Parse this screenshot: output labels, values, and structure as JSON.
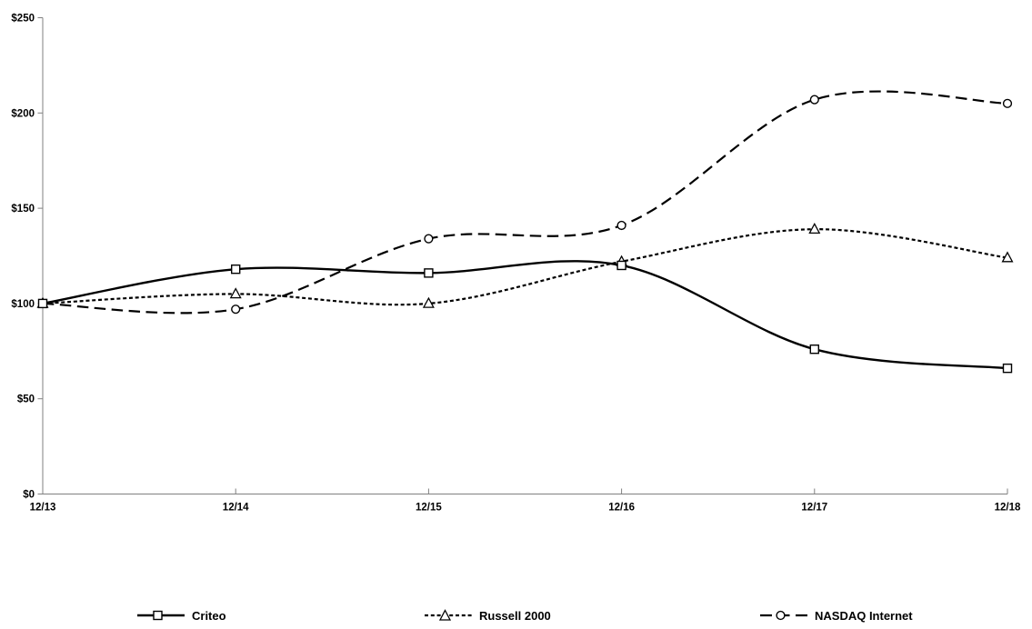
{
  "page": {
    "background_color": "#ffffff",
    "text_color": "#000000",
    "axis_color": "#808080"
  },
  "chart_data": {
    "type": "line",
    "title": "",
    "xlabel": "",
    "ylabel": "",
    "categories": [
      "12/13",
      "12/14",
      "12/15",
      "12/16",
      "12/17",
      "12/18"
    ],
    "series": [
      {
        "name": "Criteo",
        "values": [
          100,
          118,
          116,
          120,
          76,
          66
        ],
        "color": "#000000",
        "line_style": "solid",
        "marker": "square"
      },
      {
        "name": "Russell 2000",
        "values": [
          100,
          105,
          100,
          122,
          139,
          124
        ],
        "color": "#000000",
        "line_style": "short-dash",
        "marker": "triangle-up"
      },
      {
        "name": "NASDAQ Internet",
        "values": [
          100,
          97,
          134,
          141,
          207,
          205
        ],
        "color": "#000000",
        "line_style": "long-dash",
        "marker": "circle"
      }
    ],
    "ylim": [
      0,
      250
    ],
    "ytick_interval": 50,
    "yticks": [
      0,
      50,
      100,
      150,
      200,
      250
    ],
    "ytick_labels": [
      "$0",
      "$50",
      "$100",
      "$150",
      "$200",
      "$250"
    ],
    "grid": false,
    "legend_position": "bottom",
    "curve": "smooth"
  }
}
